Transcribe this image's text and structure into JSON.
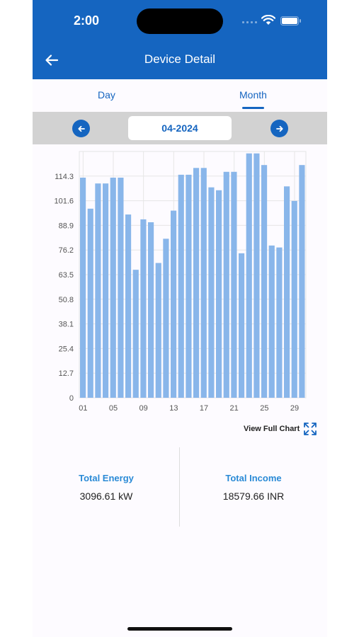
{
  "status_bar": {
    "time": "2:00"
  },
  "header": {
    "title": "Device Detail",
    "back_icon": "arrow-left-icon"
  },
  "tabs": [
    {
      "label": "Day",
      "selected": false
    },
    {
      "label": "Month",
      "selected": true
    }
  ],
  "date_selector": {
    "value": "04-2024",
    "prev_icon": "arrow-left-circle-icon",
    "next_icon": "arrow-right-circle-icon"
  },
  "chart_data": {
    "type": "bar",
    "categories": [
      "01",
      "02",
      "03",
      "04",
      "05",
      "06",
      "07",
      "08",
      "09",
      "10",
      "11",
      "12",
      "13",
      "14",
      "15",
      "16",
      "17",
      "18",
      "19",
      "20",
      "21",
      "22",
      "23",
      "24",
      "25",
      "26",
      "27",
      "28",
      "29",
      "30"
    ],
    "x_tick_labels": [
      "01",
      "05",
      "09",
      "13",
      "17",
      "21",
      "25",
      "29"
    ],
    "values": [
      113.5,
      97.5,
      110.5,
      110.5,
      113.5,
      113.5,
      94.5,
      66,
      92,
      90.5,
      69.5,
      82,
      96.5,
      115,
      115,
      118.5,
      118.5,
      108.5,
      107,
      116.5,
      116.5,
      74.5,
      126,
      126,
      120,
      78.5,
      77.5,
      109,
      101.5,
      120
    ],
    "y_ticks": [
      "0",
      "12.7",
      "25.4",
      "38.1",
      "50.8",
      "63.5",
      "76.2",
      "88.9",
      "101.6",
      "114.3"
    ],
    "ylim": [
      0,
      127
    ],
    "bar_color": "#89b6ea",
    "grid": true
  },
  "view_full_chart": {
    "label": "View Full Chart",
    "icon": "expand-icon"
  },
  "stats": {
    "total_energy": {
      "label": "Total Energy",
      "value": "3096.61 kW"
    },
    "total_income": {
      "label": "Total Income",
      "value": "18579.66 INR"
    }
  },
  "colors": {
    "primary": "#1565c0",
    "accent": "#2a8ad6",
    "date_bar": "#d2d2d2"
  }
}
